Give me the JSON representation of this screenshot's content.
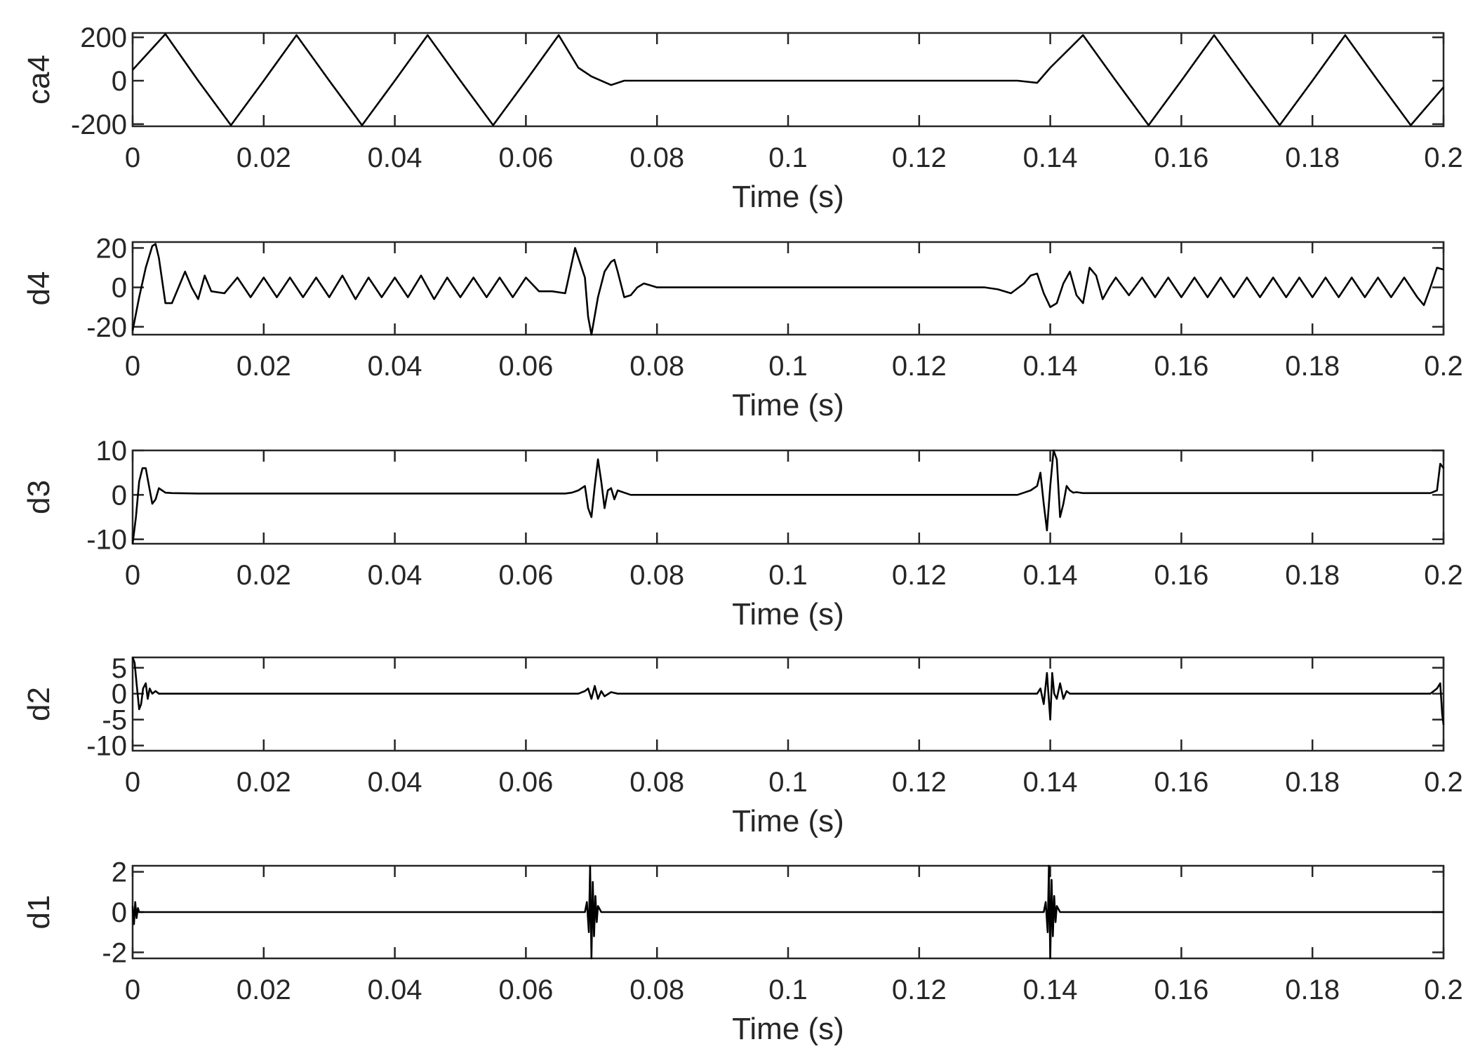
{
  "chart_data": [
    {
      "type": "line",
      "series": [
        {
          "name": "ca4"
        }
      ],
      "ylabel": "ca4",
      "xlabel": "Time (s)",
      "xlim": [
        0,
        0.2
      ],
      "ylim": [
        -210,
        220
      ],
      "xticks": [
        "0",
        "0.02",
        "0.04",
        "0.06",
        "0.08",
        "0.1",
        "0.12",
        "0.14",
        "0.16",
        "0.18",
        "0.2"
      ],
      "yticks": [
        {
          "value": 200,
          "label": "200"
        },
        {
          "value": 0,
          "label": "0"
        },
        {
          "value": -200,
          "label": "-200"
        }
      ],
      "x": [
        0.0,
        0.005,
        0.01,
        0.015,
        0.02,
        0.025,
        0.03,
        0.035,
        0.04,
        0.045,
        0.05,
        0.055,
        0.06,
        0.065,
        0.068,
        0.07,
        0.073,
        0.075,
        0.08,
        0.1,
        0.12,
        0.135,
        0.138,
        0.14,
        0.145,
        0.15,
        0.155,
        0.16,
        0.165,
        0.17,
        0.175,
        0.18,
        0.185,
        0.19,
        0.195,
        0.2
      ],
      "y": [
        50,
        215,
        0,
        -205,
        0,
        210,
        0,
        -205,
        0,
        210,
        0,
        -205,
        0,
        210,
        60,
        20,
        -20,
        0,
        0,
        0,
        0,
        0,
        -10,
        60,
        210,
        0,
        -205,
        0,
        210,
        0,
        -205,
        0,
        210,
        0,
        -205,
        -30
      ]
    },
    {
      "type": "line",
      "series": [
        {
          "name": "d4"
        }
      ],
      "ylabel": "d4",
      "xlabel": "Time (s)",
      "xlim": [
        0,
        0.2
      ],
      "ylim": [
        -24,
        23
      ],
      "xticks": [
        "0",
        "0.02",
        "0.04",
        "0.06",
        "0.08",
        "0.1",
        "0.12",
        "0.14",
        "0.16",
        "0.18",
        "0.2"
      ],
      "yticks": [
        {
          "value": 20,
          "label": "20"
        },
        {
          "value": 0,
          "label": "0"
        },
        {
          "value": -20,
          "label": "-20"
        }
      ],
      "x": [
        0.0,
        0.001,
        0.002,
        0.003,
        0.0035,
        0.004,
        0.005,
        0.006,
        0.007,
        0.008,
        0.009,
        0.01,
        0.011,
        0.012,
        0.014,
        0.016,
        0.018,
        0.02,
        0.022,
        0.024,
        0.026,
        0.028,
        0.03,
        0.032,
        0.034,
        0.036,
        0.038,
        0.04,
        0.042,
        0.044,
        0.046,
        0.048,
        0.05,
        0.052,
        0.054,
        0.056,
        0.058,
        0.06,
        0.062,
        0.064,
        0.066,
        0.0675,
        0.069,
        0.0695,
        0.07,
        0.071,
        0.072,
        0.073,
        0.0735,
        0.074,
        0.075,
        0.076,
        0.077,
        0.078,
        0.079,
        0.08,
        0.09,
        0.1,
        0.11,
        0.12,
        0.13,
        0.132,
        0.134,
        0.136,
        0.137,
        0.138,
        0.139,
        0.14,
        0.141,
        0.142,
        0.143,
        0.144,
        0.145,
        0.146,
        0.147,
        0.148,
        0.149,
        0.15,
        0.152,
        0.154,
        0.156,
        0.158,
        0.16,
        0.162,
        0.164,
        0.166,
        0.168,
        0.17,
        0.172,
        0.174,
        0.176,
        0.178,
        0.18,
        0.182,
        0.184,
        0.186,
        0.188,
        0.19,
        0.192,
        0.194,
        0.196,
        0.197,
        0.198,
        0.199,
        0.2
      ],
      "y": [
        -22,
        -5,
        10,
        21,
        22,
        15,
        -8,
        -8,
        0,
        8,
        0,
        -6,
        6,
        -2,
        -3,
        5,
        -5,
        5,
        -5,
        5,
        -5,
        5,
        -5,
        6,
        -6,
        5,
        -5,
        5,
        -5,
        6,
        -6,
        5,
        -5,
        5,
        -5,
        5,
        -5,
        5,
        -2,
        -2,
        -3,
        20,
        5,
        -15,
        -25,
        -5,
        8,
        13,
        14,
        8,
        -5,
        -4,
        0,
        2,
        1,
        0,
        0,
        0,
        0,
        0,
        0,
        -1,
        -3,
        2,
        6,
        7,
        -3,
        -10,
        -8,
        2,
        8,
        -4,
        -8,
        10,
        6,
        -6,
        0,
        5,
        -4,
        5,
        -5,
        5,
        -5,
        5,
        -5,
        5,
        -5,
        5,
        -5,
        5,
        -5,
        5,
        -5,
        5,
        -5,
        5,
        -5,
        5,
        -5,
        5,
        -5,
        -9,
        0,
        10,
        9
      ]
    },
    {
      "type": "line",
      "series": [
        {
          "name": "d3"
        }
      ],
      "ylabel": "d3",
      "xlabel": "Time (s)",
      "xlim": [
        0,
        0.2
      ],
      "ylim": [
        -11,
        10
      ],
      "xticks": [
        "0",
        "0.02",
        "0.04",
        "0.06",
        "0.08",
        "0.1",
        "0.12",
        "0.14",
        "0.16",
        "0.18",
        "0.2"
      ],
      "yticks": [
        {
          "value": 10,
          "label": "10"
        },
        {
          "value": 0,
          "label": "0"
        },
        {
          "value": -10,
          "label": "-10"
        }
      ],
      "x": [
        0.0,
        0.0005,
        0.001,
        0.0015,
        0.002,
        0.0025,
        0.003,
        0.0035,
        0.004,
        0.0045,
        0.005,
        0.006,
        0.01,
        0.02,
        0.03,
        0.04,
        0.05,
        0.06,
        0.066,
        0.067,
        0.068,
        0.069,
        0.0695,
        0.07,
        0.0705,
        0.071,
        0.0715,
        0.072,
        0.0725,
        0.073,
        0.0735,
        0.074,
        0.075,
        0.076,
        0.09,
        0.1,
        0.12,
        0.135,
        0.136,
        0.137,
        0.138,
        0.1385,
        0.139,
        0.1395,
        0.14,
        0.1405,
        0.141,
        0.1415,
        0.142,
        0.1425,
        0.143,
        0.1435,
        0.144,
        0.145,
        0.146,
        0.15,
        0.16,
        0.17,
        0.18,
        0.19,
        0.198,
        0.199,
        0.1995,
        0.2
      ],
      "y": [
        -11,
        -5,
        3,
        6,
        6,
        2,
        -2,
        -1,
        1.5,
        1,
        0.5,
        0.4,
        0.3,
        0.3,
        0.3,
        0.3,
        0.3,
        0.3,
        0.3,
        0.5,
        1,
        2,
        -3,
        -5,
        2,
        8,
        3,
        -3,
        1,
        1.5,
        -1,
        1,
        0.5,
        0,
        0,
        0,
        0,
        0,
        0.5,
        1,
        2,
        5,
        -2,
        -8,
        2,
        10,
        8,
        -5,
        -2,
        2,
        1,
        0.5,
        0.6,
        0.4,
        0.4,
        0.4,
        0.4,
        0.4,
        0.4,
        0.4,
        0.4,
        1,
        7,
        6
      ]
    },
    {
      "type": "line",
      "series": [
        {
          "name": "d2"
        }
      ],
      "ylabel": "d2",
      "xlabel": "Time (s)",
      "xlim": [
        0,
        0.2
      ],
      "ylim": [
        -11,
        7
      ],
      "xticks": [
        "0",
        "0.02",
        "0.04",
        "0.06",
        "0.08",
        "0.1",
        "0.12",
        "0.14",
        "0.16",
        "0.18",
        "0.2"
      ],
      "yticks": [
        {
          "value": 5,
          "label": "5"
        },
        {
          "value": 0,
          "label": "0"
        },
        {
          "value": -5,
          "label": "-5"
        },
        {
          "value": -10,
          "label": "-10"
        }
      ],
      "x": [
        0.0,
        0.0003,
        0.0006,
        0.001,
        0.0013,
        0.0016,
        0.002,
        0.0023,
        0.0026,
        0.003,
        0.0035,
        0.004,
        0.005,
        0.01,
        0.03,
        0.05,
        0.068,
        0.069,
        0.0695,
        0.07,
        0.0705,
        0.071,
        0.0715,
        0.072,
        0.073,
        0.074,
        0.09,
        0.12,
        0.138,
        0.1385,
        0.139,
        0.1395,
        0.14,
        0.1403,
        0.1406,
        0.141,
        0.1415,
        0.142,
        0.1425,
        0.143,
        0.144,
        0.15,
        0.17,
        0.19,
        0.198,
        0.1985,
        0.199,
        0.1995,
        0.1998,
        0.2
      ],
      "y": [
        7,
        6,
        2,
        -3,
        -2,
        1,
        2,
        -1,
        1,
        0,
        0.5,
        0,
        0,
        0,
        0,
        0,
        0,
        0.5,
        1,
        -1,
        1.5,
        -1,
        0.5,
        -0.5,
        0.3,
        0,
        0,
        0,
        0,
        1,
        -2,
        4,
        -5,
        4,
        0,
        -1,
        2,
        -1,
        0.5,
        0,
        0,
        0,
        0,
        0,
        0,
        0.5,
        1,
        2,
        -4,
        -6
      ]
    },
    {
      "type": "line",
      "series": [
        {
          "name": "d1"
        }
      ],
      "ylabel": "d1",
      "xlabel": "Time (s)",
      "xlim": [
        0,
        0.2
      ],
      "ylim": [
        -2.3,
        2.3
      ],
      "xticks": [
        "0",
        "0.02",
        "0.04",
        "0.06",
        "0.08",
        "0.1",
        "0.12",
        "0.14",
        "0.16",
        "0.18",
        "0.2"
      ],
      "yticks": [
        {
          "value": 2,
          "label": "2"
        },
        {
          "value": 0,
          "label": "0"
        },
        {
          "value": -2,
          "label": "-2"
        }
      ],
      "x": [
        0.0,
        0.0002,
        0.0004,
        0.0006,
        0.0008,
        0.001,
        0.0015,
        0.002,
        0.069,
        0.0693,
        0.0696,
        0.0698,
        0.07,
        0.0702,
        0.0704,
        0.0706,
        0.0708,
        0.071,
        0.0715,
        0.072,
        0.139,
        0.1393,
        0.1396,
        0.1398,
        0.14,
        0.1402,
        0.1404,
        0.1406,
        0.1408,
        0.141,
        0.1415,
        0.142,
        0.2
      ],
      "y": [
        0.3,
        -0.6,
        0.5,
        -0.3,
        0.2,
        0,
        0,
        0,
        0,
        0.5,
        -1,
        2.3,
        -2.3,
        1.5,
        -1.2,
        0.8,
        -0.5,
        0.3,
        0,
        0,
        0,
        0.5,
        -1,
        2.3,
        -2.3,
        1.6,
        -1.2,
        0.8,
        -0.5,
        0.3,
        0,
        0,
        0
      ]
    }
  ]
}
